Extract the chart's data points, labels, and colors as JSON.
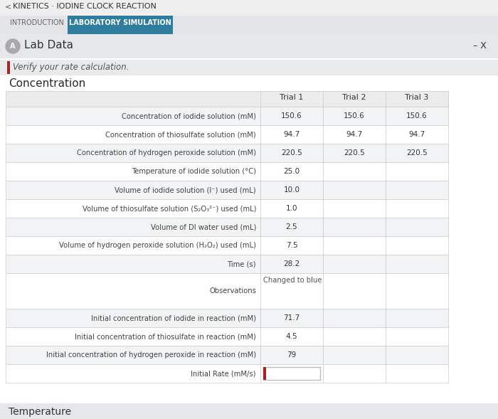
{
  "title": "KINETICS · IODINE CLOCK REACTION",
  "tab1": "INTRODUCTION",
  "tab2": "LABORATORY SIMULATION",
  "section": "Lab Data",
  "subtitle": "Verify your rate calculation.",
  "section2": "Concentration",
  "minus_x": "– X",
  "headers": [
    "Trial 1",
    "Trial 2",
    "Trial 3"
  ],
  "rows": [
    {
      "label": "Concentration of iodide solution (mM)",
      "t1": "150.6",
      "t2": "150.6",
      "t3": "150.6"
    },
    {
      "label": "Concentration of thiosulfate solution (mM)",
      "t1": "94.7",
      "t2": "94.7",
      "t3": "94.7"
    },
    {
      "label": "Concentration of hydrogen peroxide solution (mM)",
      "t1": "220.5",
      "t2": "220.5",
      "t3": "220.5"
    },
    {
      "label": "Temperature of iodide solution (°C)",
      "t1": "25.0",
      "t2": "",
      "t3": ""
    },
    {
      "label": "Volume of iodide solution (I⁻) used (mL)",
      "t1": "10.0",
      "t2": "",
      "t3": ""
    },
    {
      "label": "Volume of thiosulfate solution (S₂O₃²⁻) used (mL)",
      "t1": "1.0",
      "t2": "",
      "t3": ""
    },
    {
      "label": "Volume of DI water used (mL)",
      "t1": "2.5",
      "t2": "",
      "t3": ""
    },
    {
      "label": "Volume of hydrogen peroxide solution (H₂O₂) used (mL)",
      "t1": "7.5",
      "t2": "",
      "t3": ""
    },
    {
      "label": "Time (s)",
      "t1": "28.2",
      "t2": "",
      "t3": ""
    },
    {
      "label": "Observations",
      "t1": "Changed to blue",
      "t2": "",
      "t3": "",
      "obs": true
    },
    {
      "label": "Initial concentration of iodide in reaction (mM)",
      "t1": "71.7",
      "t2": "",
      "t3": ""
    },
    {
      "label": "Initial concentration of thiosulfate in reaction (mM)",
      "t1": "4.5",
      "t2": "",
      "t3": ""
    },
    {
      "label": "Initial concentration of hydrogen peroxide in reaction (mM)",
      "t1": "79",
      "t2": "",
      "t3": ""
    },
    {
      "label": "Initial Rate (mM/s)",
      "t1": "",
      "t2": "",
      "t3": "",
      "input": true
    }
  ],
  "footer": "Temperature",
  "tab_blue": "#2e7d9e",
  "red_bar": "#9e2a2a",
  "input_border": "#aa2222",
  "bg_outer": "#b8bec7",
  "bg_topbar": "#efefef",
  "bg_tabbar": "#e2e4e7",
  "bg_section_hdr": "#e5e7ea",
  "bg_white": "#ffffff",
  "bg_subtitle": "#e8eaec",
  "bg_row_odd": "#f2f3f4",
  "bg_row_even": "#ffffff",
  "bg_header_row": "#ececec",
  "border_color": "#cccccc",
  "text_dark": "#2a2a2a",
  "text_med": "#555555",
  "text_light": "#888888",
  "icon_gray": "#888888"
}
